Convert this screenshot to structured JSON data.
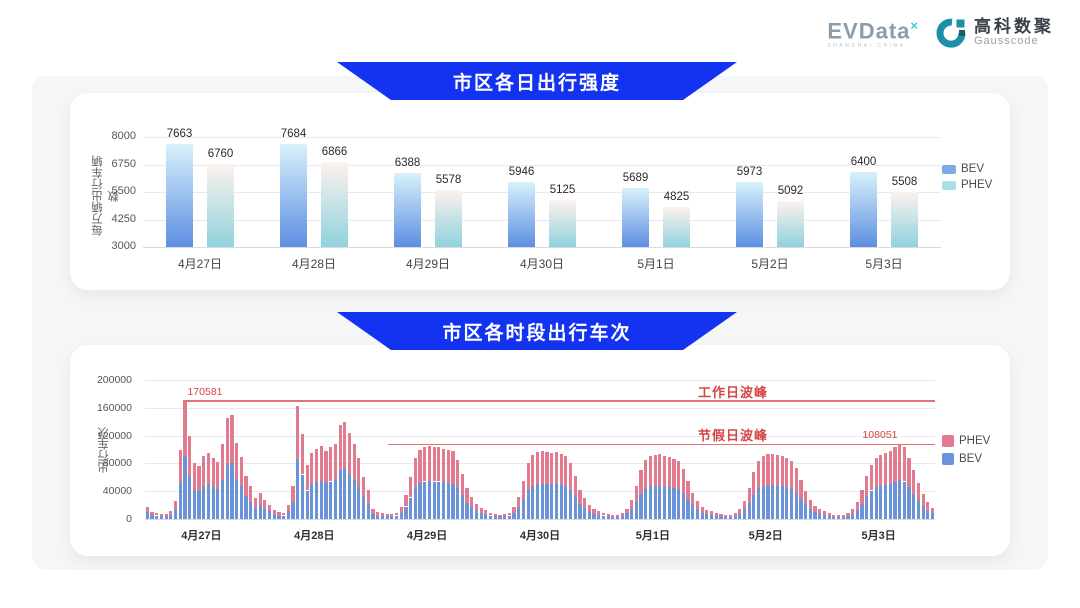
{
  "logo": {
    "evdata_text": "EVData",
    "evdata_sup": "×",
    "evdata_subtext": "SHANGHAI CHINA",
    "gausscode_cn": "高科数聚",
    "gausscode_en": "Gausscode"
  },
  "colors": {
    "banner_blue": "#1433f0",
    "annotation_red": "#d64545",
    "peak_line_red": "#e57373"
  },
  "chart_data": [
    {
      "type": "bar",
      "title": "市区各日出行强度",
      "ylabel": "每万辆出行车辆数",
      "xlabel": "",
      "ylim": [
        3000,
        8000
      ],
      "yticks": [
        3000,
        4250,
        5500,
        6750,
        8000
      ],
      "grid": true,
      "legend_position": "right",
      "categories": [
        "4月27日",
        "4月28日",
        "4月29日",
        "4月30日",
        "5月1日",
        "5月2日",
        "5月3日"
      ],
      "series": [
        {
          "name": "BEV",
          "values": [
            7663,
            7684,
            6388,
            5946,
            5689,
            5973,
            6400
          ],
          "gradient_from": "#d8f1fb",
          "gradient_to": "#5d8fe2",
          "legend_color": "#7cabe8"
        },
        {
          "name": "PHEV",
          "values": [
            6760,
            6866,
            5578,
            5125,
            4825,
            5092,
            5508
          ],
          "gradient_from": "#fdf2ee",
          "gradient_to": "#90d2dd",
          "legend_color": "#a9dde8"
        }
      ]
    },
    {
      "type": "stacked-bar",
      "title": "市区各时段出行车次",
      "ylabel": "出行车次",
      "xlabel": "",
      "ylim": [
        0,
        200000
      ],
      "yticks": [
        0,
        40000,
        80000,
        120000,
        160000,
        200000
      ],
      "grid": true,
      "legend_position": "right",
      "hours_per_day": 24,
      "categories": [
        "4月27日",
        "4月28日",
        "4月29日",
        "4月30日",
        "5月1日",
        "5月2日",
        "5月3日"
      ],
      "annotations": {
        "workday": {
          "label": "工作日波峰",
          "value": 170581
        },
        "holiday": {
          "label": "节假日波峰",
          "value": 108051
        }
      },
      "series_legend": [
        {
          "name": "PHEV",
          "color": "#e27a90"
        },
        {
          "name": "BEV",
          "color": "#6b93d9"
        }
      ],
      "days": [
        {
          "date": "4月27日",
          "total": [
            18000,
            10000,
            8000,
            7000,
            7000,
            11000,
            26000,
            100000,
            170581,
            119000,
            80000,
            76000,
            91000,
            95000,
            88000,
            82000,
            108000,
            146000,
            150000,
            109000,
            89000,
            62000,
            47000,
            30000
          ],
          "bev": [
            10000,
            6000,
            5000,
            4000,
            4000,
            6000,
            14000,
            52000,
            91000,
            62000,
            42000,
            40000,
            48000,
            50000,
            46000,
            43000,
            56000,
            78000,
            80000,
            58000,
            47000,
            33000,
            25000,
            16000
          ]
        },
        {
          "date": "4月28日",
          "total": [
            38000,
            28000,
            20000,
            13000,
            10000,
            9000,
            20000,
            48000,
            163000,
            122000,
            78000,
            95000,
            101000,
            105000,
            98000,
            103000,
            108000,
            135000,
            140000,
            124000,
            108000,
            88000,
            60000,
            42000
          ],
          "bev": [
            20000,
            15000,
            11000,
            7000,
            5000,
            5000,
            11000,
            25000,
            86000,
            64000,
            41000,
            50000,
            53000,
            55000,
            52000,
            54000,
            57000,
            71000,
            74000,
            65000,
            57000,
            46000,
            32000,
            22000
          ]
        },
        {
          "date": "4月29日",
          "total": [
            14000,
            10000,
            8000,
            7000,
            7000,
            9000,
            18000,
            35000,
            60000,
            88000,
            100000,
            103000,
            105000,
            104000,
            103000,
            101000,
            100000,
            98000,
            85000,
            65000,
            45000,
            32000,
            22000,
            16000
          ],
          "bev": [
            7000,
            5000,
            4000,
            4000,
            4000,
            5000,
            9000,
            18000,
            31000,
            46000,
            52000,
            54000,
            55000,
            54000,
            54000,
            53000,
            52000,
            51000,
            44000,
            34000,
            23000,
            17000,
            11000,
            8000
          ]
        },
        {
          "date": "4月30日",
          "total": [
            13000,
            9000,
            7000,
            6000,
            7000,
            9000,
            17000,
            32000,
            55000,
            80000,
            92000,
            96000,
            98000,
            97000,
            95000,
            96000,
            94000,
            90000,
            80000,
            62000,
            42000,
            30000,
            20000,
            14000
          ],
          "bev": [
            7000,
            5000,
            4000,
            3000,
            4000,
            5000,
            9000,
            17000,
            29000,
            42000,
            48000,
            50000,
            51000,
            51000,
            50000,
            50000,
            49000,
            47000,
            42000,
            32000,
            22000,
            16000,
            10000,
            7000
          ]
        },
        {
          "date": "5月1日",
          "total": [
            12000,
            9000,
            7000,
            6000,
            6000,
            8000,
            15000,
            28000,
            48000,
            70000,
            85000,
            90000,
            92000,
            93000,
            91000,
            89000,
            87000,
            83000,
            72000,
            55000,
            38000,
            26000,
            18000,
            13000
          ],
          "bev": [
            6000,
            5000,
            4000,
            3000,
            3000,
            4000,
            8000,
            15000,
            25000,
            36000,
            44000,
            47000,
            48000,
            48000,
            47000,
            46000,
            45000,
            43000,
            37000,
            29000,
            20000,
            14000,
            9000,
            7000
          ]
        },
        {
          "date": "5月2日",
          "total": [
            12000,
            8000,
            7000,
            6000,
            6000,
            8000,
            14000,
            26000,
            45000,
            68000,
            84000,
            90000,
            93000,
            94000,
            92000,
            90000,
            88000,
            84000,
            74000,
            56000,
            40000,
            28000,
            19000,
            14000
          ],
          "bev": [
            6000,
            4000,
            4000,
            3000,
            3000,
            4000,
            7000,
            14000,
            23000,
            35000,
            44000,
            47000,
            48000,
            49000,
            48000,
            47000,
            46000,
            44000,
            38000,
            29000,
            21000,
            15000,
            10000,
            7000
          ]
        },
        {
          "date": "5月3日",
          "total": [
            12000,
            8000,
            6000,
            6000,
            6000,
            8000,
            14000,
            25000,
            42000,
            62000,
            78000,
            88000,
            92000,
            95000,
            98000,
            103000,
            108051,
            104000,
            88000,
            70000,
            52000,
            36000,
            24000,
            16000
          ],
          "bev": [
            6000,
            4000,
            3000,
            3000,
            3000,
            4000,
            7000,
            13000,
            22000,
            32000,
            41000,
            46000,
            48000,
            49000,
            51000,
            53000,
            56000,
            54000,
            46000,
            36000,
            27000,
            19000,
            12000,
            8000
          ]
        }
      ]
    }
  ]
}
